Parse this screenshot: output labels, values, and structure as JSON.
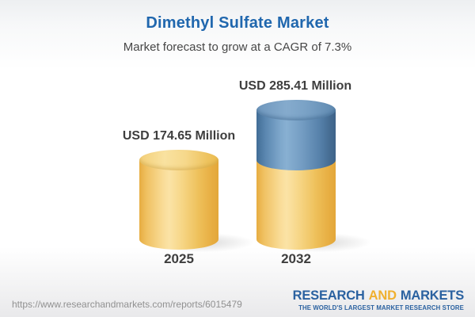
{
  "header": {
    "title": "Dimethyl Sulfate Market",
    "subtitle": "Market forecast to grow at a CAGR of 7.3%"
  },
  "chart_data": {
    "type": "bar",
    "subtype": "3d-cylinder",
    "title": "Dimethyl Sulfate Market",
    "subtitle": "Market forecast to grow at a CAGR of 7.3%",
    "categories": [
      "2025",
      "2032"
    ],
    "values": [
      174.65,
      285.41
    ],
    "value_labels": [
      "USD 174.65 Million",
      "USD 285.41 Million"
    ],
    "unit": "USD Million",
    "cagr_percent": 7.3,
    "ylim": [
      0,
      300
    ],
    "grid": false,
    "legend": false,
    "colors": {
      "base_segment_yellow": "#f0c264",
      "growth_segment_blue": "#6b94ba"
    }
  },
  "footer": {
    "url": "https://www.researchandmarkets.com/reports/6015479",
    "logo": {
      "research": "RESEARCH",
      "and": "AND",
      "markets": "MARKETS",
      "tagline": "THE WORLD'S LARGEST MARKET RESEARCH STORE"
    }
  },
  "colors": {
    "title_blue": "#2067ae",
    "subtitle_text": "#474747",
    "label_text": "#3e3e3e",
    "url_text": "#919191",
    "logo_blue": "#2a61a0",
    "logo_yellow": "#f0b02f"
  }
}
